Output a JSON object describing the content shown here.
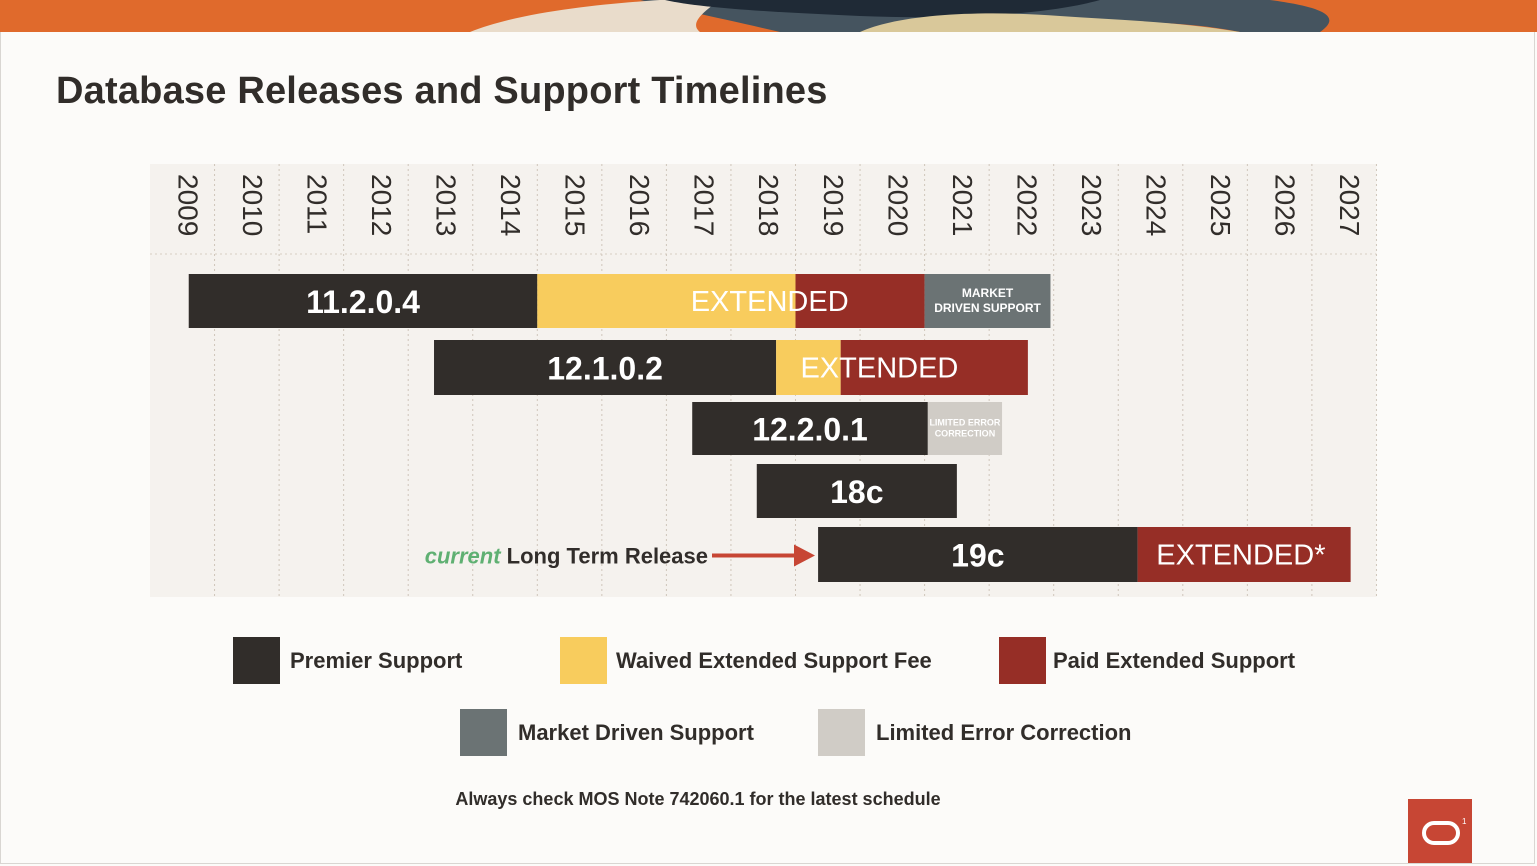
{
  "slide": {
    "title": "Database Releases and Support Timelines",
    "footnote": "Always check MOS Note 742060.1 for the latest schedule",
    "logo": "oracle-logo"
  },
  "colors": {
    "premier": "#312d2a",
    "waived": "#f8cc5d",
    "paid": "#962e26",
    "market": "#6b7374",
    "limited": "#d0ccc6",
    "grid_bg": "#f5f2ee",
    "annotation_current": "#5fb072",
    "arrow": "#c74634",
    "banner_orange": "#e06a2c",
    "banner_navy": "#1f2a36",
    "banner_slate": "#45545f",
    "banner_tan": "#e9dccb"
  },
  "legend": [
    {
      "key": "premier",
      "label": "Premier Support"
    },
    {
      "key": "waived",
      "label": "Waived Extended Support Fee"
    },
    {
      "key": "paid",
      "label": "Paid Extended Support"
    },
    {
      "key": "market",
      "label": "Market Driven Support"
    },
    {
      "key": "limited",
      "label": "Limited Error Correction"
    }
  ],
  "chart_data": {
    "type": "gantt",
    "title": "Database Releases and Support Timelines",
    "x_axis": {
      "years": [
        "2009",
        "2010",
        "2011",
        "2012",
        "2013",
        "2014",
        "2015",
        "2016",
        "2017",
        "2018",
        "2019",
        "2020",
        "2021",
        "2022",
        "2023",
        "2024",
        "2025",
        "2026",
        "2027"
      ],
      "range": [
        2009,
        2028
      ],
      "grid": true,
      "tick_labels_rotated": true
    },
    "releases": [
      {
        "name": "11.2.0.4",
        "label": "11.2.0.4",
        "segments": [
          {
            "type": "premier",
            "start": 2009.6,
            "end": 2015.0
          },
          {
            "type": "waived",
            "start": 2015.0,
            "end": 2019.0
          },
          {
            "type": "paid",
            "start": 2019.0,
            "end": 2021.0
          },
          {
            "type": "market",
            "start": 2021.0,
            "end": 2022.95
          }
        ],
        "overlay_text": "EXTENDED",
        "overlay_center": 2018.6,
        "tail_label": [
          "MARKET",
          "DRIVEN SUPPORT"
        ]
      },
      {
        "name": "12.1.0.2",
        "label": "12.1.0.2",
        "segments": [
          {
            "type": "premier",
            "start": 2013.4,
            "end": 2018.7
          },
          {
            "type": "waived",
            "start": 2018.7,
            "end": 2019.7
          },
          {
            "type": "paid",
            "start": 2019.7,
            "end": 2022.6
          }
        ],
        "overlay_text": "EXTENDED",
        "overlay_center": 2020.3
      },
      {
        "name": "12.2.0.1",
        "label": "12.2.0.1",
        "segments": [
          {
            "type": "premier",
            "start": 2017.4,
            "end": 2021.05
          },
          {
            "type": "limited",
            "start": 2021.05,
            "end": 2022.2
          }
        ],
        "tail_label": [
          "LIMITED ERROR",
          "CORRECTION"
        ]
      },
      {
        "name": "18c",
        "label": "18c",
        "segments": [
          {
            "type": "premier",
            "start": 2018.4,
            "end": 2021.5
          }
        ]
      },
      {
        "name": "19c",
        "label": "19c",
        "segments": [
          {
            "type": "premier",
            "start": 2019.35,
            "end": 2024.3
          },
          {
            "type": "paid",
            "start": 2024.3,
            "end": 2027.6
          }
        ],
        "overlay_text": "EXTENDED*",
        "overlay_center": 2025.9,
        "annotation": {
          "prefix": "current",
          "text": "Long Term Release"
        }
      }
    ]
  }
}
